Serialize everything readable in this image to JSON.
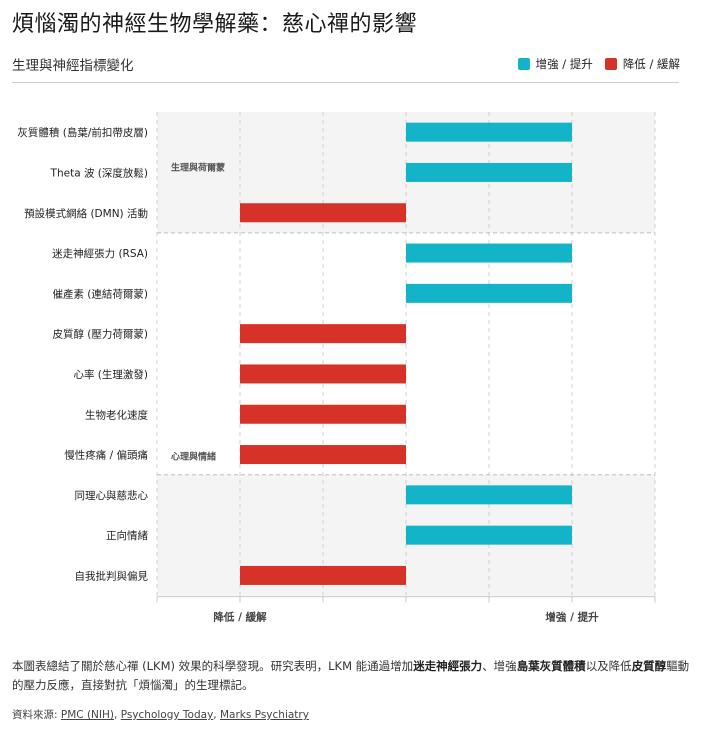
{
  "title": "煩惱濁的神經生物學解藥：慈心禪的影響",
  "subtitle": "生理與神經指標變化",
  "legend": [
    {
      "label": "增強 / 提升",
      "color": "#14b4c8"
    },
    {
      "label": "降低 / 緩解",
      "color": "#d63228"
    }
  ],
  "chart_data": {
    "type": "bar",
    "orientation": "horizontal",
    "categories": [
      "灰質體積 (島葉/前扣帶皮層)",
      "Theta 波 (深度放鬆)",
      "預設模式網絡 (DMN) 活動",
      "迷走神經張力 (RSA)",
      "催產素 (連結荷爾蒙)",
      "皮質醇 (壓力荷爾蒙)",
      "心率 (生理激發)",
      "生物老化速度",
      "慢性疼痛 / 偏頭痛",
      "同理心與慈悲心",
      "正向情緒",
      "自我批判與偏見"
    ],
    "values": [
      1,
      1,
      -1,
      1,
      1,
      -1,
      -1,
      -1,
      -1,
      1,
      1,
      -1
    ],
    "xlim": [
      -1.5,
      1.5
    ],
    "xtick_labels": [
      {
        "value": -1,
        "label": "降低 / 緩解"
      },
      {
        "value": 1,
        "label": "增強 / 提升"
      }
    ],
    "groups": [
      {
        "label": "生理與荷爾蒙",
        "start": 0,
        "end": 2,
        "shaded": true
      },
      {
        "label": "心理與情緒",
        "start": 3,
        "end": 8,
        "shaded": false
      },
      {
        "label": "",
        "start": 9,
        "end": 11,
        "shaded": true
      }
    ],
    "positive_color": "#14b4c8",
    "negative_color": "#d63228",
    "grid": true
  },
  "description": {
    "part1": "本圖表總結了關於慈心禪 (LKM) 效果的科學發現。研究表明，LKM 能通過增加",
    "bold1": "迷走神經張力",
    "part2": "、增強",
    "bold2": "島葉灰質體積",
    "part3": "以及降低",
    "bold3": "皮質醇",
    "part4": "驅動的壓力反應，直接對抗「煩惱濁」的生理標記。"
  },
  "source": {
    "prefix": "資料來源: ",
    "links": [
      "PMC (NIH)",
      "Psychology Today",
      "Marks Psychiatry"
    ],
    "sep": ", "
  }
}
